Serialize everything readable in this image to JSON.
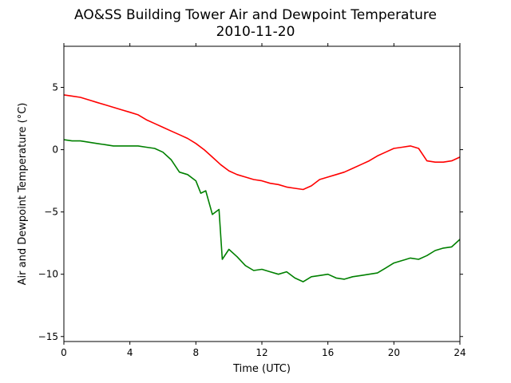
{
  "chart_data": {
    "type": "line",
    "title": "AO&SS Building Tower Air and Dewpoint Temperature",
    "subtitle": "2010-11-20",
    "xlabel": "Time (UTC)",
    "ylabel": "Air and Dewpoint Temperature (°C)",
    "xlim": [
      0,
      24
    ],
    "ylim": [
      -15.4,
      8.3
    ],
    "xticks": [
      0,
      4,
      8,
      12,
      16,
      20,
      24
    ],
    "yticks": [
      5,
      0,
      -5,
      -10,
      -15
    ],
    "grid": false,
    "legend": "none",
    "series": [
      {
        "color": "#ff0000",
        "x": [
          0,
          0.5,
          1,
          1.5,
          2,
          2.5,
          3,
          3.5,
          4,
          4.5,
          5,
          5.5,
          6,
          6.5,
          7,
          7.5,
          8,
          8.5,
          9,
          9.5,
          10,
          10.5,
          11,
          11.5,
          12,
          12.5,
          13,
          13.5,
          14,
          14.5,
          15,
          15.5,
          16,
          16.5,
          17,
          17.5,
          18,
          18.5,
          19,
          19.5,
          20,
          20.5,
          21,
          21.5,
          22,
          22.5,
          23,
          23.5,
          24
        ],
        "y": [
          4.4,
          4.3,
          4.2,
          4.0,
          3.8,
          3.6,
          3.4,
          3.2,
          3.0,
          2.8,
          2.4,
          2.1,
          1.8,
          1.5,
          1.2,
          0.9,
          0.5,
          0.0,
          -0.6,
          -1.2,
          -1.7,
          -2.0,
          -2.2,
          -2.4,
          -2.5,
          -2.7,
          -2.8,
          -3.0,
          -3.1,
          -3.2,
          -2.9,
          -2.4,
          -2.2,
          -2.0,
          -1.8,
          -1.5,
          -1.2,
          -0.9,
          -0.5,
          -0.2,
          0.1,
          0.2,
          0.3,
          0.1,
          -0.9,
          -1.0,
          -1.0,
          -0.9,
          -0.6
        ]
      },
      {
        "color": "#008000",
        "x": [
          0,
          0.5,
          1,
          1.5,
          2,
          2.5,
          3,
          3.5,
          4,
          4.5,
          5,
          5.5,
          6,
          6.5,
          7,
          7.5,
          8,
          8.3,
          8.6,
          9,
          9.2,
          9.4,
          9.6,
          10,
          10.5,
          11,
          11.5,
          12,
          12.5,
          13,
          13.5,
          14,
          14.5,
          15,
          15.5,
          16,
          16.5,
          17,
          17.5,
          18,
          18.5,
          19,
          19.5,
          20,
          20.5,
          21,
          21.5,
          22,
          22.5,
          23,
          23.5,
          24
        ],
        "y": [
          0.8,
          0.7,
          0.7,
          0.6,
          0.5,
          0.4,
          0.3,
          0.3,
          0.3,
          0.3,
          0.2,
          0.1,
          -0.2,
          -0.8,
          -1.8,
          -2.0,
          -2.5,
          -3.5,
          -3.3,
          -5.2,
          -5.0,
          -4.8,
          -8.8,
          -8.0,
          -8.6,
          -9.3,
          -9.7,
          -9.6,
          -9.8,
          -10.0,
          -9.8,
          -10.3,
          -10.6,
          -10.2,
          -10.1,
          -10.0,
          -10.3,
          -10.4,
          -10.2,
          -10.1,
          -10.0,
          -9.9,
          -9.5,
          -9.1,
          -8.9,
          -8.7,
          -8.8,
          -8.5,
          -8.1,
          -7.9,
          -7.8,
          -7.2
        ]
      }
    ]
  }
}
